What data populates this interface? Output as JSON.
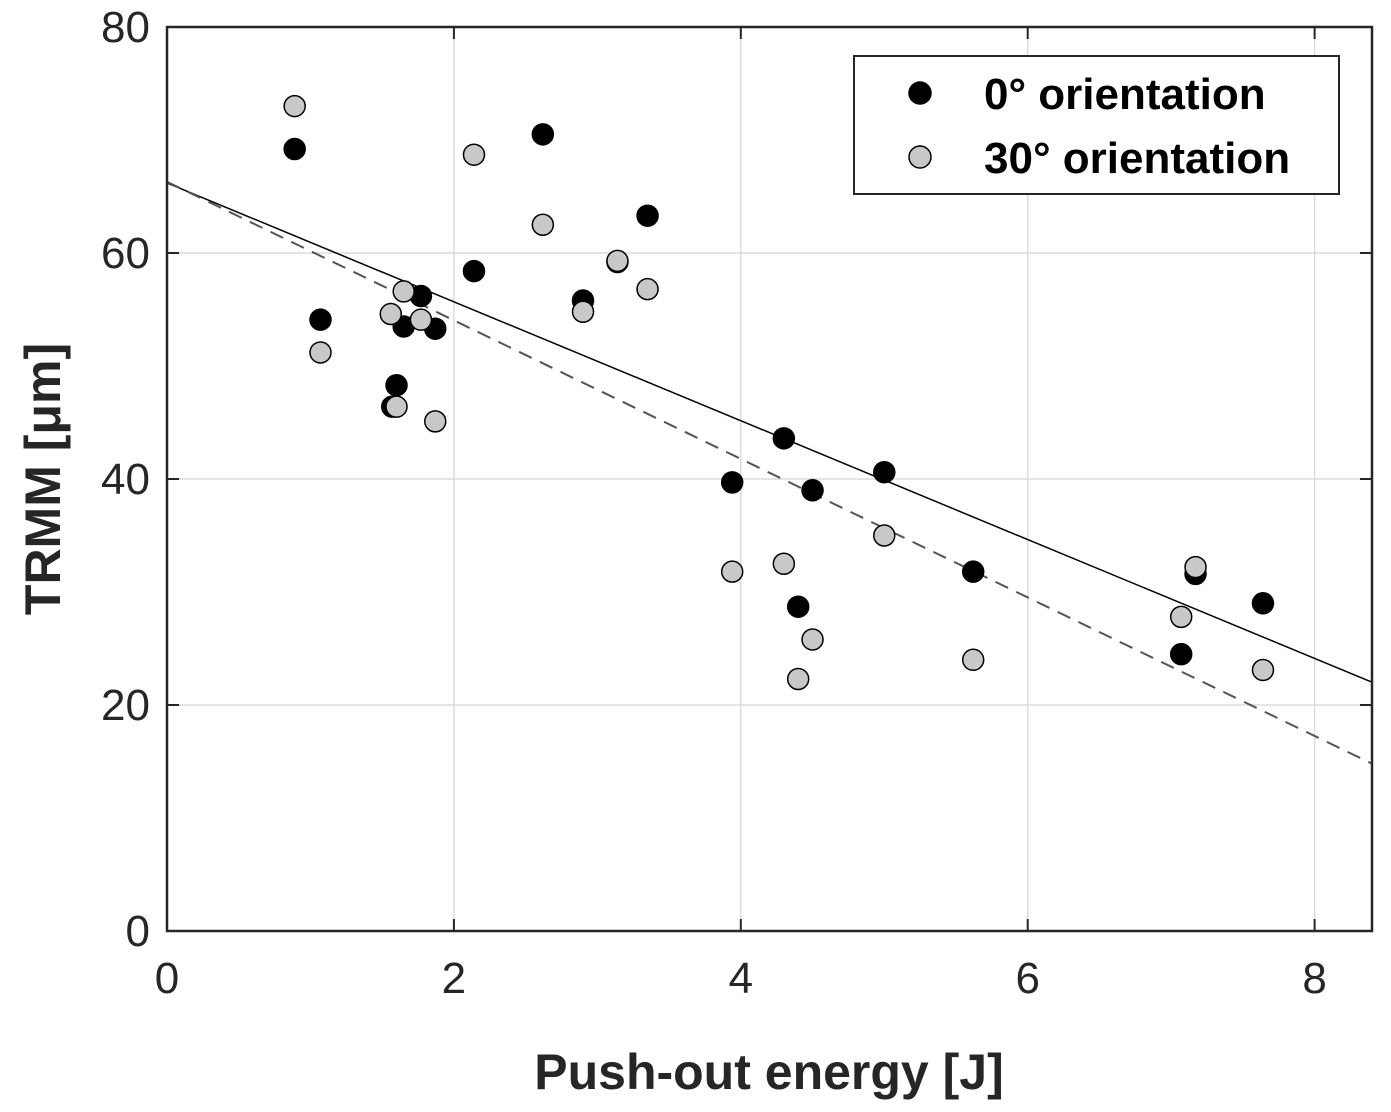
{
  "chart_data": {
    "type": "scatter",
    "xlabel": "Push-out energy [J]",
    "ylabel": "TRMM [μm]",
    "xlim": [
      0,
      8.4
    ],
    "ylim": [
      0,
      80
    ],
    "xticks": [
      0,
      2,
      4,
      6,
      8
    ],
    "yticks": [
      0,
      20,
      40,
      60,
      80
    ],
    "xtick_labels": [
      "0",
      "2",
      "4",
      "6",
      "8"
    ],
    "ytick_labels": [
      "0",
      "20",
      "40",
      "60",
      "80"
    ],
    "grid": true,
    "legend_position": "top-right",
    "series": [
      {
        "name": "0° orientation",
        "marker_color": "#000000",
        "points": [
          [
            0.89,
            69.2
          ],
          [
            1.07,
            54.1
          ],
          [
            1.57,
            46.4
          ],
          [
            1.6,
            48.3
          ],
          [
            1.65,
            53.5
          ],
          [
            1.77,
            56.2
          ],
          [
            1.87,
            53.3
          ],
          [
            2.14,
            58.4
          ],
          [
            2.62,
            70.5
          ],
          [
            2.9,
            55.8
          ],
          [
            3.14,
            59.2
          ],
          [
            3.35,
            63.3
          ],
          [
            3.94,
            39.7
          ],
          [
            4.3,
            43.6
          ],
          [
            4.4,
            28.7
          ],
          [
            4.5,
            39.0
          ],
          [
            5.0,
            40.6
          ],
          [
            5.62,
            31.8
          ],
          [
            7.07,
            24.5
          ],
          [
            7.17,
            31.6
          ],
          [
            7.64,
            29.0
          ]
        ],
        "fit_line": {
          "style": "solid",
          "color": "#000000",
          "intercept": 66.2,
          "slope": -5.26
        }
      },
      {
        "name": "30° orientation",
        "marker_color": "#c8c8c8",
        "points": [
          [
            0.89,
            73.0
          ],
          [
            1.07,
            51.2
          ],
          [
            1.56,
            54.6
          ],
          [
            1.6,
            46.4
          ],
          [
            1.65,
            56.6
          ],
          [
            1.77,
            54.1
          ],
          [
            1.87,
            45.1
          ],
          [
            2.14,
            68.7
          ],
          [
            2.62,
            62.5
          ],
          [
            2.9,
            54.8
          ],
          [
            3.14,
            59.3
          ],
          [
            3.35,
            56.8
          ],
          [
            3.94,
            31.8
          ],
          [
            4.3,
            32.5
          ],
          [
            4.4,
            22.3
          ],
          [
            4.5,
            25.8
          ],
          [
            5.0,
            35.0
          ],
          [
            5.62,
            24.0
          ],
          [
            7.07,
            27.8
          ],
          [
            7.17,
            32.2
          ],
          [
            7.64,
            23.1
          ]
        ],
        "fit_line": {
          "style": "dashed",
          "color": "#555555",
          "intercept": 66.3,
          "slope": -6.13
        }
      }
    ]
  }
}
